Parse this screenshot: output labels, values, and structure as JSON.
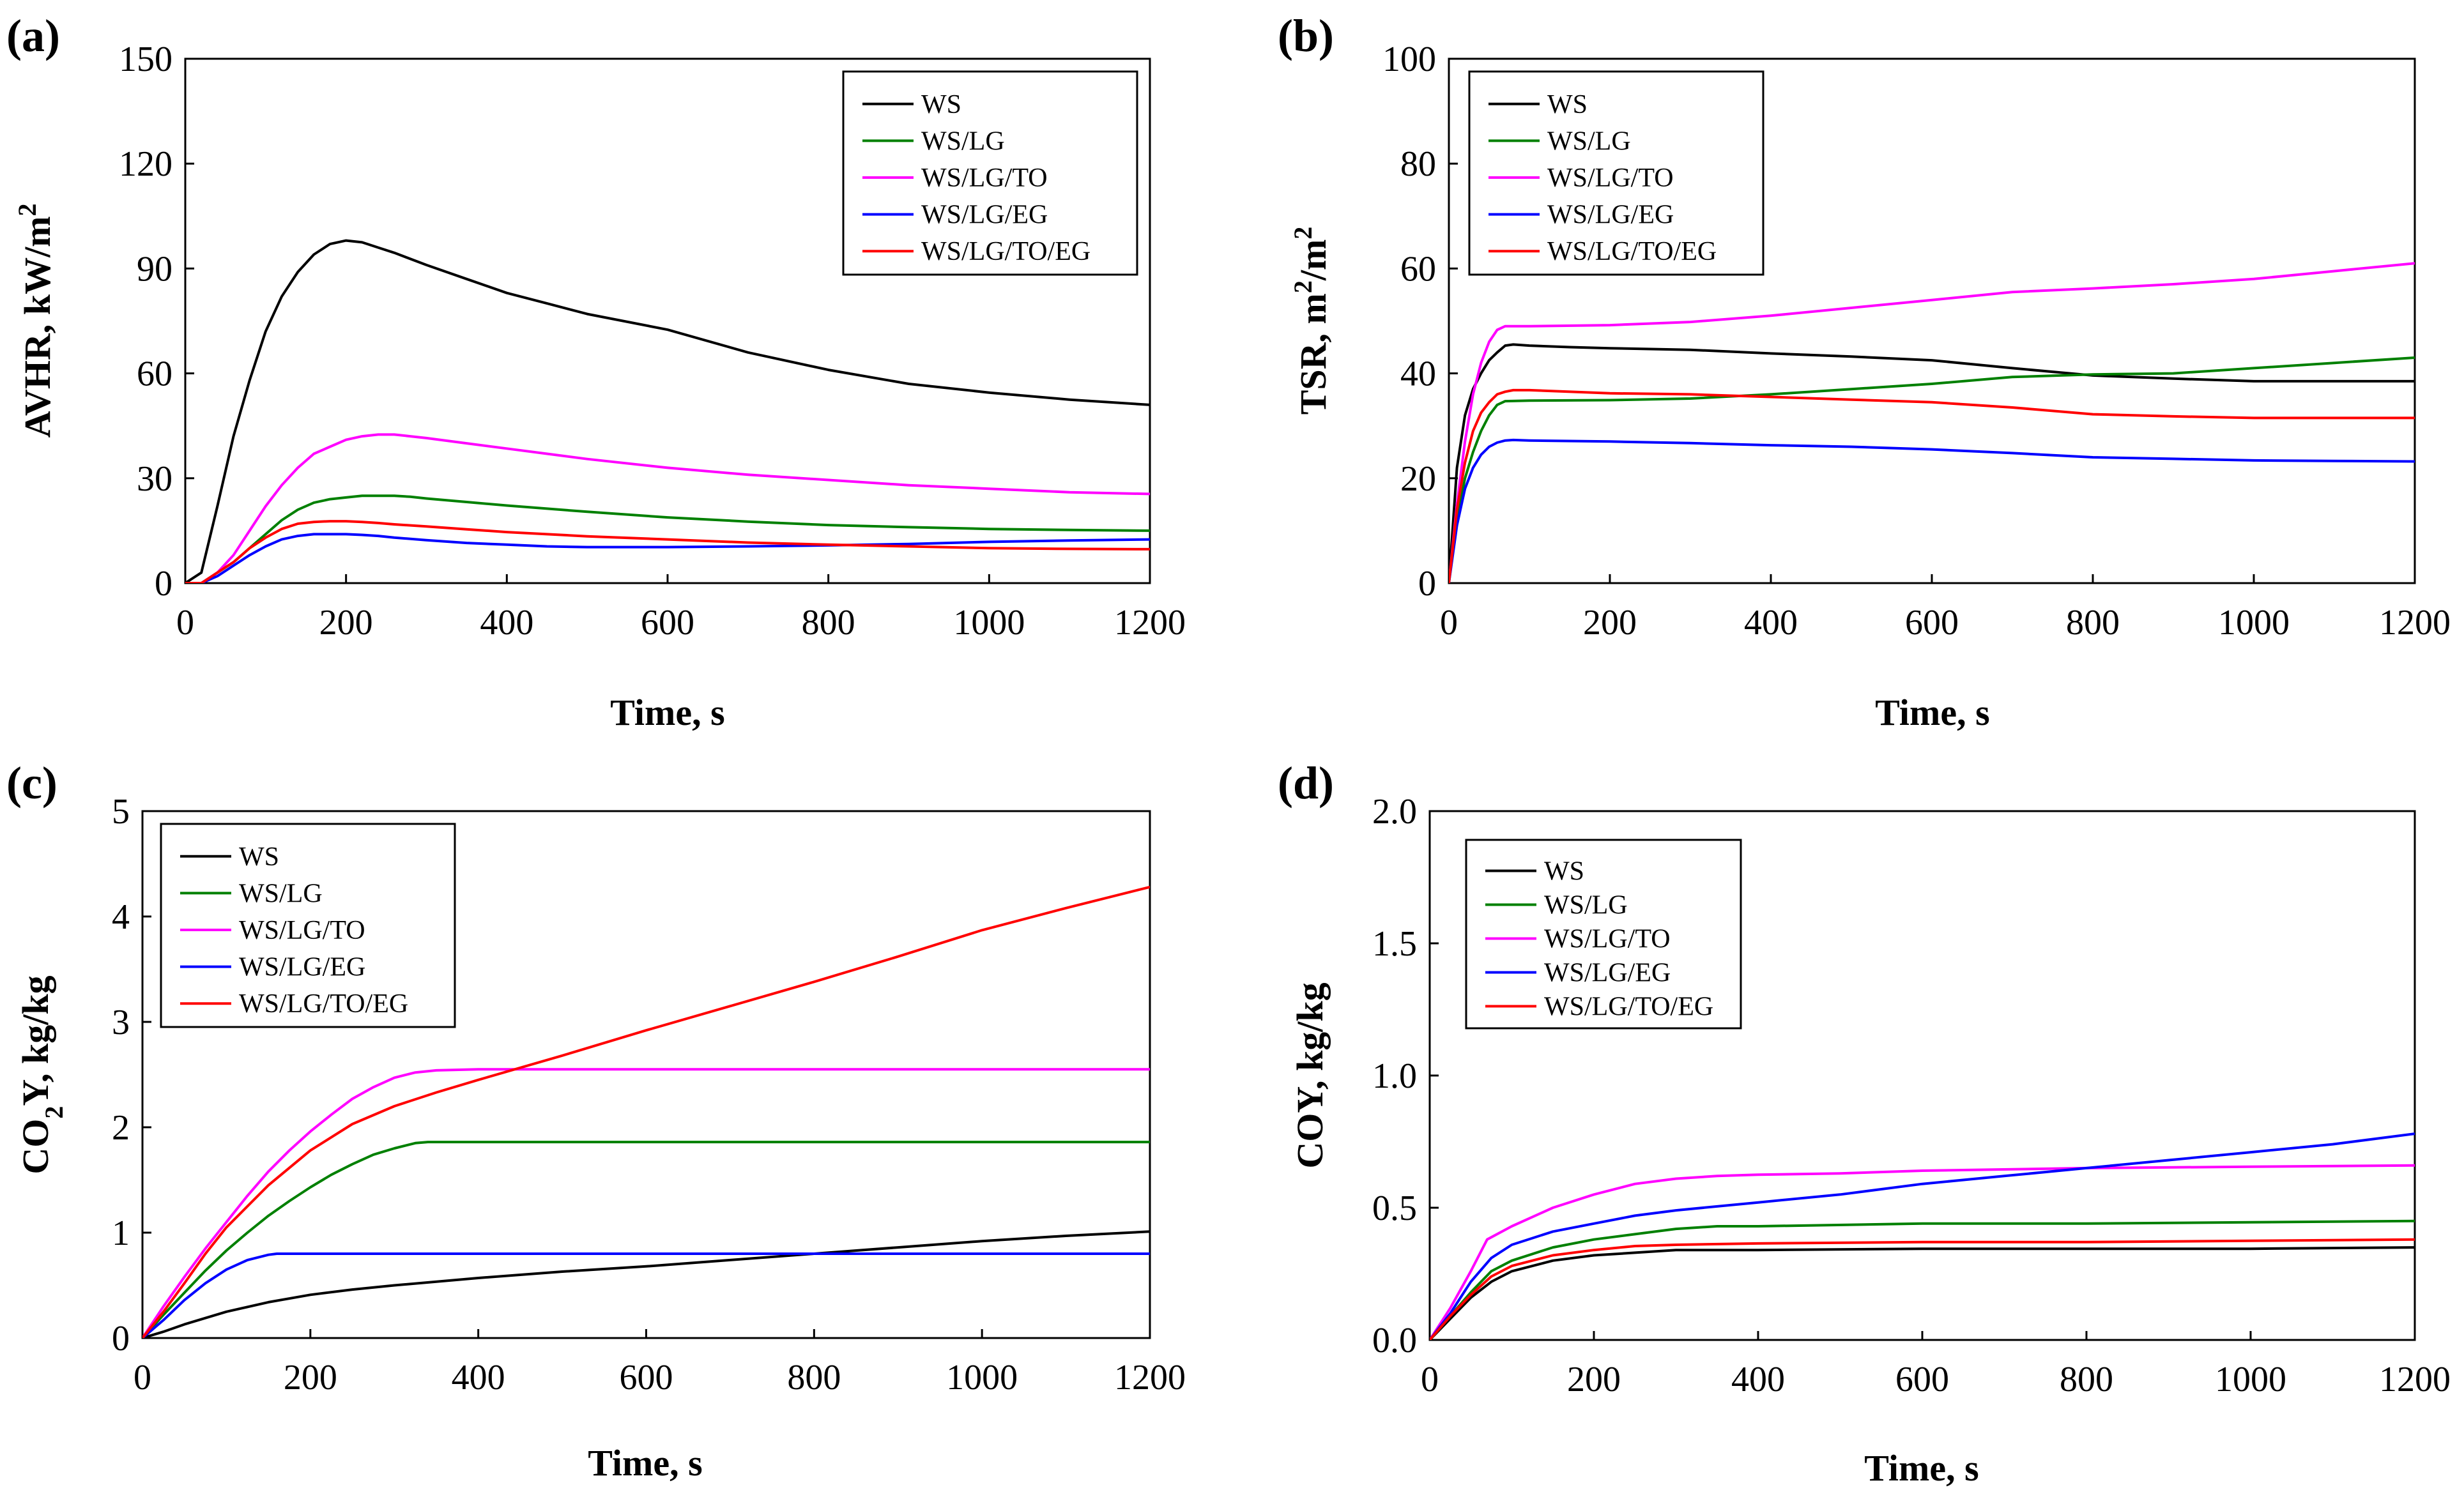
{
  "figure": {
    "colors": {
      "WS": "#000000",
      "WS/LG": "#008000",
      "WS/LG/TO": "#ff00ff",
      "WS/LG/EG": "#0000ff",
      "WS/LG/TO/EG": "#ff0000"
    }
  },
  "chart_data": [
    {
      "id": "a",
      "panel_label": "(a)",
      "type": "line",
      "xlabel": "Time, s",
      "ylabel": "AVHR, kW/m",
      "ylabel_sup": "2",
      "ylabel_parts": [
        "AVHR, kW/m",
        "2"
      ],
      "xlim": [
        0,
        1200
      ],
      "ylim": [
        0,
        150
      ],
      "xticks": [
        0,
        200,
        400,
        600,
        800,
        1000,
        1200
      ],
      "yticks": [
        0,
        30,
        60,
        90,
        120,
        150
      ],
      "ytick_labels": [
        "0",
        "30",
        "60",
        "90",
        "120",
        "150"
      ],
      "legend": "top-right",
      "series": [
        {
          "name": "WS",
          "x": [
            0,
            20,
            40,
            60,
            80,
            100,
            120,
            140,
            160,
            180,
            200,
            220,
            240,
            260,
            300,
            350,
            400,
            450,
            500,
            600,
            700,
            800,
            900,
            1000,
            1100,
            1200
          ],
          "y": [
            0,
            3,
            22,
            42,
            58,
            72,
            82,
            89,
            94,
            97,
            98,
            97.5,
            96,
            94.5,
            91,
            87,
            83,
            80,
            77,
            72.5,
            66,
            61,
            57,
            54.5,
            52.5,
            51
          ]
        },
        {
          "name": "WS/LG",
          "x": [
            0,
            20,
            40,
            60,
            80,
            100,
            120,
            140,
            160,
            180,
            200,
            220,
            240,
            260,
            280,
            300,
            350,
            400,
            450,
            500,
            600,
            700,
            800,
            900,
            1000,
            1100,
            1200
          ],
          "y": [
            0,
            0,
            3,
            6,
            10,
            14,
            18,
            21,
            23,
            24,
            24.5,
            25,
            25,
            25,
            24.7,
            24.2,
            23.2,
            22.2,
            21.3,
            20.4,
            18.8,
            17.6,
            16.6,
            16,
            15.5,
            15.2,
            15
          ]
        },
        {
          "name": "WS/LG/TO",
          "x": [
            0,
            20,
            40,
            60,
            80,
            100,
            120,
            140,
            160,
            180,
            200,
            220,
            240,
            260,
            280,
            300,
            350,
            400,
            450,
            500,
            600,
            700,
            800,
            900,
            1000,
            1100,
            1200
          ],
          "y": [
            0,
            0,
            3,
            8,
            15,
            22,
            28,
            33,
            37,
            39,
            41,
            42,
            42.5,
            42.5,
            42,
            41.5,
            40,
            38.5,
            37,
            35.5,
            33,
            31,
            29.5,
            28,
            27,
            26,
            25.5
          ]
        },
        {
          "name": "WS/LG/EG",
          "x": [
            0,
            20,
            40,
            60,
            80,
            100,
            120,
            140,
            160,
            180,
            200,
            220,
            240,
            260,
            300,
            350,
            400,
            450,
            500,
            600,
            700,
            800,
            900,
            1000,
            1100,
            1200
          ],
          "y": [
            0,
            0,
            2,
            5,
            8,
            10.5,
            12.5,
            13.5,
            14,
            14,
            14,
            13.8,
            13.5,
            13,
            12.3,
            11.5,
            11,
            10.5,
            10.3,
            10.3,
            10.5,
            10.8,
            11.2,
            11.8,
            12.2,
            12.5
          ]
        },
        {
          "name": "WS/LG/TO/EG",
          "x": [
            0,
            20,
            40,
            60,
            80,
            100,
            120,
            140,
            160,
            180,
            200,
            220,
            240,
            260,
            300,
            350,
            400,
            450,
            500,
            600,
            700,
            800,
            900,
            1000,
            1100,
            1200
          ],
          "y": [
            0,
            0,
            3,
            6,
            10,
            13,
            15.5,
            17,
            17.5,
            17.7,
            17.7,
            17.5,
            17.2,
            16.8,
            16.2,
            15.4,
            14.6,
            14,
            13.4,
            12.5,
            11.6,
            11,
            10.5,
            10,
            9.8,
            9.7
          ]
        }
      ]
    },
    {
      "id": "b",
      "panel_label": "(b)",
      "type": "line",
      "xlabel": "Time, s",
      "ylabel": "TSR, m",
      "ylabel_parts": [
        "TSR, m",
        "2",
        "/m",
        "2"
      ],
      "xlim": [
        0,
        1200
      ],
      "ylim": [
        0,
        100
      ],
      "xticks": [
        0,
        200,
        400,
        600,
        800,
        1000,
        1200
      ],
      "yticks": [
        0,
        20,
        40,
        60,
        80,
        100
      ],
      "ytick_labels": [
        "0",
        "20",
        "40",
        "60",
        "80",
        "100"
      ],
      "legend": "top-left",
      "series": [
        {
          "name": "WS",
          "x": [
            0,
            10,
            20,
            30,
            40,
            50,
            60,
            70,
            80,
            100,
            150,
            200,
            300,
            400,
            500,
            600,
            700,
            800,
            900,
            1000,
            1100,
            1200
          ],
          "y": [
            0,
            22,
            32,
            37,
            40,
            42.5,
            44,
            45.3,
            45.5,
            45.3,
            45,
            44.8,
            44.5,
            43.8,
            43.2,
            42.5,
            41,
            39.6,
            39,
            38.5,
            38.5,
            38.5
          ]
        },
        {
          "name": "WS/LG",
          "x": [
            0,
            10,
            20,
            30,
            40,
            50,
            60,
            70,
            100,
            200,
            300,
            400,
            500,
            600,
            700,
            800,
            900,
            1000,
            1100,
            1200
          ],
          "y": [
            0,
            12,
            20,
            25,
            29,
            32,
            34,
            34.7,
            34.8,
            34.9,
            35.2,
            36,
            37,
            38,
            39.3,
            39.8,
            40,
            41,
            42,
            43
          ]
        },
        {
          "name": "WS/LG/TO",
          "x": [
            0,
            10,
            20,
            30,
            40,
            50,
            60,
            70,
            100,
            200,
            300,
            400,
            500,
            600,
            700,
            800,
            900,
            1000,
            1100,
            1200
          ],
          "y": [
            0,
            15,
            27,
            36,
            42,
            46,
            48.3,
            49,
            49,
            49.2,
            49.8,
            51,
            52.5,
            54,
            55.5,
            56.2,
            57,
            58,
            59.5,
            61
          ]
        },
        {
          "name": "WS/LG/EG",
          "x": [
            0,
            10,
            20,
            30,
            40,
            50,
            60,
            70,
            80,
            100,
            200,
            300,
            400,
            500,
            600,
            700,
            800,
            900,
            1000,
            1100,
            1200
          ],
          "y": [
            0,
            11,
            18,
            22,
            24.5,
            26,
            26.8,
            27.2,
            27.3,
            27.2,
            27,
            26.7,
            26.3,
            26,
            25.5,
            24.8,
            24,
            23.7,
            23.4,
            23.3,
            23.2
          ]
        },
        {
          "name": "WS/LG/TO/EG",
          "x": [
            0,
            10,
            20,
            30,
            40,
            50,
            60,
            70,
            80,
            100,
            200,
            300,
            400,
            500,
            600,
            700,
            800,
            900,
            1000,
            1100,
            1200
          ],
          "y": [
            0,
            14,
            23,
            29,
            32.5,
            34.5,
            36,
            36.5,
            36.8,
            36.8,
            36.2,
            36,
            35.5,
            35,
            34.5,
            33.5,
            32.2,
            31.8,
            31.5,
            31.5,
            31.5
          ]
        }
      ]
    },
    {
      "id": "c",
      "panel_label": "(c)",
      "type": "line",
      "xlabel": "Time, s",
      "ylabel": "CO",
      "ylabel_parts": [
        "CO",
        "2",
        "Y, kg/kg"
      ],
      "xlim": [
        0,
        1200
      ],
      "ylim": [
        0,
        5
      ],
      "xticks": [
        0,
        200,
        400,
        600,
        800,
        1000,
        1200
      ],
      "yticks": [
        0,
        1,
        2,
        3,
        4,
        5
      ],
      "ytick_labels": [
        "0",
        "1",
        "2",
        "3",
        "4",
        "5"
      ],
      "legend": "top-left",
      "series": [
        {
          "name": "WS",
          "x": [
            0,
            25,
            50,
            100,
            150,
            200,
            250,
            300,
            400,
            500,
            600,
            700,
            800,
            900,
            1000,
            1100,
            1200
          ],
          "y": [
            0,
            0.06,
            0.13,
            0.25,
            0.34,
            0.41,
            0.46,
            0.5,
            0.57,
            0.63,
            0.68,
            0.74,
            0.8,
            0.86,
            0.92,
            0.97,
            1.01
          ]
        },
        {
          "name": "WS/LG",
          "x": [
            0,
            25,
            50,
            75,
            100,
            125,
            150,
            175,
            200,
            225,
            250,
            275,
            300,
            325,
            340,
            400,
            600,
            800,
            1000,
            1200
          ],
          "y": [
            0,
            0.22,
            0.43,
            0.64,
            0.83,
            1.0,
            1.16,
            1.3,
            1.43,
            1.55,
            1.65,
            1.74,
            1.8,
            1.85,
            1.86,
            1.86,
            1.86,
            1.86,
            1.86,
            1.86
          ]
        },
        {
          "name": "WS/LG/TO",
          "x": [
            0,
            25,
            50,
            75,
            100,
            125,
            150,
            175,
            200,
            225,
            250,
            275,
            300,
            325,
            350,
            400,
            600,
            800,
            1000,
            1200
          ],
          "y": [
            0,
            0.3,
            0.58,
            0.85,
            1.1,
            1.35,
            1.58,
            1.78,
            1.96,
            2.12,
            2.27,
            2.38,
            2.47,
            2.52,
            2.54,
            2.55,
            2.55,
            2.55,
            2.55,
            2.55
          ]
        },
        {
          "name": "WS/LG/EG",
          "x": [
            0,
            25,
            50,
            75,
            100,
            125,
            150,
            160,
            200,
            400,
            600,
            800,
            1000,
            1200
          ],
          "y": [
            0,
            0.17,
            0.36,
            0.52,
            0.65,
            0.74,
            0.79,
            0.8,
            0.8,
            0.8,
            0.8,
            0.8,
            0.8,
            0.8
          ]
        },
        {
          "name": "WS/LG/TO/EG",
          "x": [
            0,
            25,
            50,
            75,
            100,
            150,
            200,
            250,
            300,
            350,
            400,
            500,
            600,
            700,
            800,
            900,
            1000,
            1100,
            1200
          ],
          "y": [
            0,
            0.25,
            0.52,
            0.8,
            1.05,
            1.45,
            1.78,
            2.03,
            2.2,
            2.33,
            2.45,
            2.68,
            2.92,
            3.15,
            3.38,
            3.62,
            3.87,
            4.08,
            4.28
          ]
        }
      ]
    },
    {
      "id": "d",
      "panel_label": "(d)",
      "type": "line",
      "xlabel": "Time, s",
      "ylabel": "COY, kg/kg",
      "ylabel_parts": [
        "COY, kg/kg"
      ],
      "xlim": [
        0,
        1200
      ],
      "ylim": [
        0,
        2
      ],
      "xticks": [
        0,
        200,
        400,
        600,
        800,
        1000,
        1200
      ],
      "yticks": [
        0,
        0.5,
        1,
        1.5,
        2
      ],
      "ytick_labels": [
        "0.0",
        "0.5",
        "1.0",
        "1.5",
        "2.0"
      ],
      "legend": "top-left",
      "series": [
        {
          "name": "WS",
          "x": [
            0,
            25,
            50,
            75,
            100,
            150,
            200,
            250,
            300,
            400,
            600,
            800,
            1000,
            1200
          ],
          "y": [
            0,
            0.08,
            0.16,
            0.22,
            0.26,
            0.3,
            0.32,
            0.33,
            0.34,
            0.34,
            0.345,
            0.345,
            0.345,
            0.35
          ]
        },
        {
          "name": "WS/LG",
          "x": [
            0,
            25,
            50,
            75,
            100,
            150,
            200,
            250,
            300,
            350,
            400,
            600,
            800,
            1000,
            1200
          ],
          "y": [
            0,
            0.09,
            0.18,
            0.26,
            0.3,
            0.35,
            0.38,
            0.4,
            0.42,
            0.43,
            0.43,
            0.44,
            0.44,
            0.445,
            0.45
          ]
        },
        {
          "name": "WS/LG/TO",
          "x": [
            0,
            25,
            50,
            70,
            100,
            150,
            200,
            250,
            300,
            350,
            400,
            500,
            600,
            800,
            1000,
            1200
          ],
          "y": [
            0,
            0.12,
            0.26,
            0.38,
            0.43,
            0.5,
            0.55,
            0.59,
            0.61,
            0.62,
            0.625,
            0.63,
            0.64,
            0.65,
            0.655,
            0.66
          ]
        },
        {
          "name": "WS/LG/EG",
          "x": [
            0,
            25,
            50,
            75,
            100,
            150,
            200,
            250,
            300,
            400,
            500,
            600,
            700,
            800,
            900,
            1000,
            1100,
            1200
          ],
          "y": [
            0,
            0.1,
            0.22,
            0.31,
            0.36,
            0.41,
            0.44,
            0.47,
            0.49,
            0.52,
            0.55,
            0.59,
            0.62,
            0.65,
            0.68,
            0.71,
            0.74,
            0.78
          ]
        },
        {
          "name": "WS/LG/TO/EG",
          "x": [
            0,
            25,
            50,
            75,
            100,
            150,
            200,
            250,
            300,
            400,
            600,
            800,
            1000,
            1200
          ],
          "y": [
            0,
            0.09,
            0.17,
            0.24,
            0.28,
            0.32,
            0.34,
            0.355,
            0.36,
            0.365,
            0.37,
            0.37,
            0.375,
            0.38
          ]
        }
      ]
    }
  ]
}
